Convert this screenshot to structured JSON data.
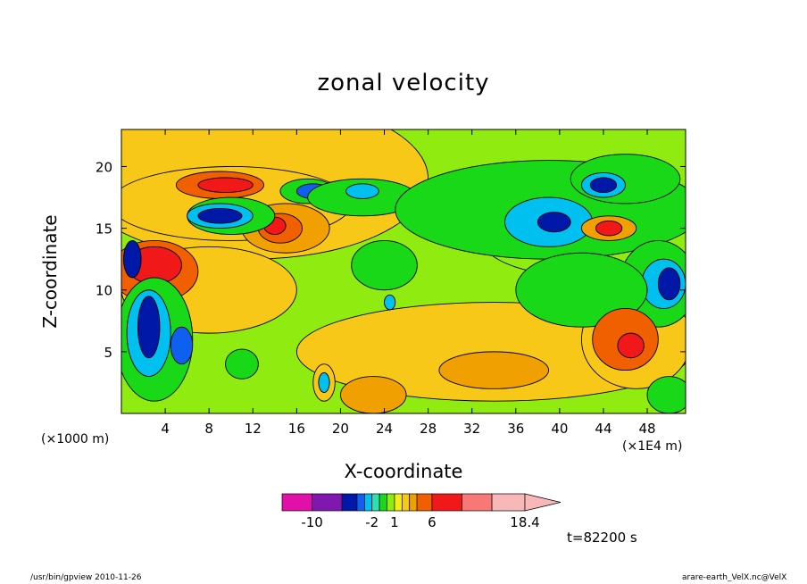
{
  "chart_data": {
    "type": "heatmap",
    "title": "zonal velocity",
    "xlabel": "X-coordinate",
    "ylabel": "Z-coordinate",
    "x_unit_left": "(×1000 m)",
    "x_unit_right": "(×1E4 m)",
    "xlim": [
      0,
      51.5
    ],
    "ylim": [
      0,
      23
    ],
    "xticks": [
      4,
      8,
      12,
      16,
      20,
      24,
      28,
      32,
      36,
      40,
      44,
      48
    ],
    "yticks": [
      5,
      10,
      15,
      20
    ],
    "colorbar": {
      "levels": [
        -14,
        -10,
        -6,
        -4,
        -3,
        -2,
        -1,
        0,
        1,
        2,
        3,
        4,
        6,
        10,
        14,
        18.4
      ],
      "labels": [
        "-10",
        "-2",
        "1",
        "6",
        "18.4"
      ],
      "label_values": [
        -10,
        -2,
        1,
        6,
        18.4
      ],
      "colors": [
        "#e010a8",
        "#8018b0",
        "#0018a8",
        "#1060f0",
        "#00c0f0",
        "#30e0b0",
        "#18d818",
        "#90ec10",
        "#f0f018",
        "#f8c818",
        "#f0a000",
        "#f06000",
        "#f01818",
        "#f87878",
        "#f8b8b8"
      ]
    },
    "regions": [
      {
        "type": "ellipse",
        "cx": 12,
        "cy": 19,
        "rx": 16,
        "ry": 6.5,
        "value": 2.5
      },
      {
        "type": "ellipse",
        "cx": 8,
        "cy": 10,
        "rx": 8,
        "ry": 3.5,
        "value": 2.5
      },
      {
        "type": "ellipse",
        "cx": 34,
        "cy": 5,
        "rx": 18,
        "ry": 4,
        "value": 2
      },
      {
        "type": "ellipse",
        "cx": 47,
        "cy": 6,
        "rx": 5,
        "ry": 4,
        "value": 2.5
      },
      {
        "type": "ellipse",
        "cx": 43,
        "cy": 14,
        "rx": 10,
        "ry": 3,
        "value": 0
      },
      {
        "type": "ellipse",
        "cx": 3,
        "cy": 11.5,
        "rx": 4,
        "ry": 2.5,
        "value": 4
      },
      {
        "type": "ellipse",
        "cx": 3,
        "cy": 12,
        "rx": 2.5,
        "ry": 1.5,
        "value": 6
      },
      {
        "type": "ellipse",
        "cx": 10,
        "cy": 17,
        "rx": 11,
        "ry": 3,
        "value": 2
      },
      {
        "type": "ellipse",
        "cx": 9,
        "cy": 18.5,
        "rx": 4,
        "ry": 1.1,
        "value": 4
      },
      {
        "type": "ellipse",
        "cx": 9.5,
        "cy": 18.5,
        "rx": 2.5,
        "ry": 0.6,
        "value": 6
      },
      {
        "type": "ellipse",
        "cx": 15,
        "cy": 15,
        "rx": 4,
        "ry": 2,
        "value": 3
      },
      {
        "type": "ellipse",
        "cx": 14.5,
        "cy": 15,
        "rx": 2,
        "ry": 1.2,
        "value": 4
      },
      {
        "type": "ellipse",
        "cx": 14,
        "cy": 15.2,
        "rx": 1,
        "ry": 0.7,
        "value": 6
      },
      {
        "type": "ellipse",
        "cx": 10,
        "cy": 16,
        "rx": 4,
        "ry": 1.5,
        "value": -1
      },
      {
        "type": "ellipse",
        "cx": 9,
        "cy": 16,
        "rx": 3,
        "ry": 1,
        "value": -3
      },
      {
        "type": "ellipse",
        "cx": 9,
        "cy": 16,
        "rx": 2,
        "ry": 0.6,
        "value": -6
      },
      {
        "type": "ellipse",
        "cx": 17,
        "cy": 18,
        "rx": 2.5,
        "ry": 1,
        "value": -1
      },
      {
        "type": "ellipse",
        "cx": 17.5,
        "cy": 18,
        "rx": 1.5,
        "ry": 0.6,
        "value": -4
      },
      {
        "type": "ellipse",
        "cx": 22,
        "cy": 17.5,
        "rx": 5,
        "ry": 1.5,
        "value": -1
      },
      {
        "type": "ellipse",
        "cx": 22,
        "cy": 18,
        "rx": 1.5,
        "ry": 0.6,
        "value": -3
      },
      {
        "type": "ellipse",
        "cx": 39,
        "cy": 16.5,
        "rx": 14,
        "ry": 4,
        "value": -1
      },
      {
        "type": "ellipse",
        "cx": 39,
        "cy": 15.5,
        "rx": 4,
        "ry": 2,
        "value": -3
      },
      {
        "type": "ellipse",
        "cx": 39.5,
        "cy": 15.5,
        "rx": 1.5,
        "ry": 0.8,
        "value": -6
      },
      {
        "type": "ellipse",
        "cx": 46,
        "cy": 19,
        "rx": 5,
        "ry": 2,
        "value": -1
      },
      {
        "type": "ellipse",
        "cx": 44,
        "cy": 18.5,
        "rx": 2,
        "ry": 1,
        "value": -3
      },
      {
        "type": "ellipse",
        "cx": 44,
        "cy": 18.5,
        "rx": 1.2,
        "ry": 0.6,
        "value": -6
      },
      {
        "type": "ellipse",
        "cx": 44.5,
        "cy": 15,
        "rx": 2.5,
        "ry": 1,
        "value": 3
      },
      {
        "type": "ellipse",
        "cx": 44.5,
        "cy": 15,
        "rx": 1.2,
        "ry": 0.6,
        "value": 6
      },
      {
        "type": "ellipse",
        "cx": 49,
        "cy": 10.5,
        "rx": 3.5,
        "ry": 3.5,
        "value": -1
      },
      {
        "type": "ellipse",
        "cx": 49.5,
        "cy": 10.5,
        "rx": 2,
        "ry": 2,
        "value": -3
      },
      {
        "type": "ellipse",
        "cx": 50,
        "cy": 10.5,
        "rx": 1,
        "ry": 1.3,
        "value": -6
      },
      {
        "type": "ellipse",
        "cx": 42,
        "cy": 10,
        "rx": 6,
        "ry": 3,
        "value": -0.5
      },
      {
        "type": "ellipse",
        "cx": 3,
        "cy": 6,
        "rx": 3.5,
        "ry": 5,
        "value": -1
      },
      {
        "type": "ellipse",
        "cx": 2.5,
        "cy": 6.5,
        "rx": 2,
        "ry": 3.5,
        "value": -3
      },
      {
        "type": "ellipse",
        "cx": 2.5,
        "cy": 7,
        "rx": 1,
        "ry": 2.5,
        "value": -6
      },
      {
        "type": "ellipse",
        "cx": 5.5,
        "cy": 5.5,
        "rx": 1,
        "ry": 1.5,
        "value": -4
      },
      {
        "type": "ellipse",
        "cx": 1,
        "cy": 12.5,
        "rx": 0.8,
        "ry": 1.5,
        "value": -6
      },
      {
        "type": "ellipse",
        "cx": 11,
        "cy": 4,
        "rx": 1.5,
        "ry": 1.2,
        "value": -1
      },
      {
        "type": "ellipse",
        "cx": 24,
        "cy": 12,
        "rx": 3,
        "ry": 2,
        "value": -1
      },
      {
        "type": "ellipse",
        "cx": 24.5,
        "cy": 9,
        "rx": 0.5,
        "ry": 0.6,
        "value": -3
      },
      {
        "type": "ellipse",
        "cx": 18.5,
        "cy": 2.5,
        "rx": 1,
        "ry": 1.5,
        "value": 2
      },
      {
        "type": "ellipse",
        "cx": 18.5,
        "cy": 2.5,
        "rx": 0.5,
        "ry": 0.8,
        "value": -3
      },
      {
        "type": "ellipse",
        "cx": 50,
        "cy": 1.5,
        "rx": 2,
        "ry": 1.5,
        "value": -1
      },
      {
        "type": "ellipse",
        "cx": 23,
        "cy": 1.5,
        "rx": 3,
        "ry": 1.5,
        "value": 3
      },
      {
        "type": "ellipse",
        "cx": 46,
        "cy": 6,
        "rx": 3,
        "ry": 2.5,
        "value": 4
      },
      {
        "type": "ellipse",
        "cx": 46.5,
        "cy": 5.5,
        "rx": 1.2,
        "ry": 1,
        "value": 6
      },
      {
        "type": "ellipse",
        "cx": 34,
        "cy": 3.5,
        "rx": 5,
        "ry": 1.5,
        "value": 3
      }
    ]
  },
  "time_label": "t=82200 s",
  "footer": {
    "left": "/usr/bin/gpview   2010-11-26",
    "right": "arare-earth_VelX.nc@VelX"
  }
}
